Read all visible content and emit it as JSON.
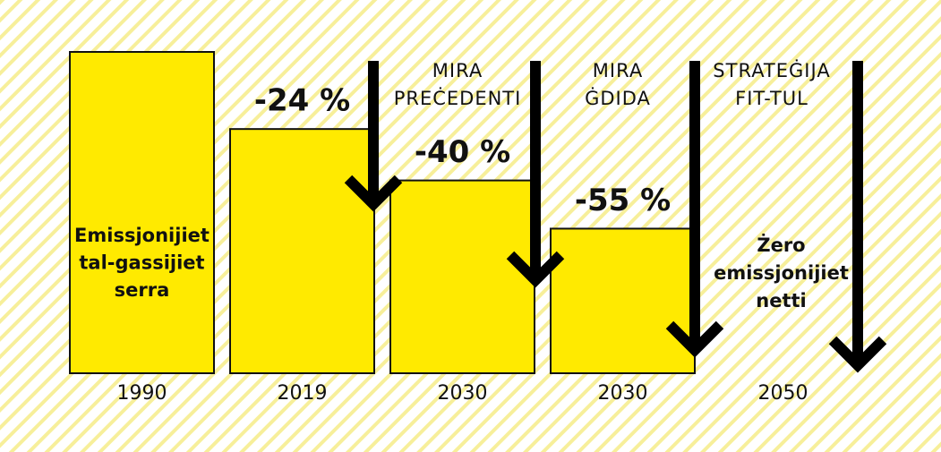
{
  "chart_data": {
    "type": "bar",
    "categories": [
      "1990",
      "2019",
      "2030",
      "2030",
      "2050"
    ],
    "values": [
      100,
      76,
      60,
      45,
      0
    ],
    "color": "#ffea00",
    "ylim": [
      0,
      100
    ],
    "reduction_labels": [
      "-24 %",
      "-40 %",
      "-55 %"
    ],
    "base_label": [
      "Emissjonijiet",
      "tal-gassijiet",
      "serra"
    ],
    "target_label": [
      "Żero",
      "emissjonijiet",
      "netti"
    ],
    "arrow_labels": [
      [
        "MIRA",
        "PREĊEDENTI"
      ],
      [
        "MIRA",
        "ĠDIDA"
      ],
      [
        "STRATEĠIJA",
        "FIT-TUL"
      ]
    ]
  }
}
